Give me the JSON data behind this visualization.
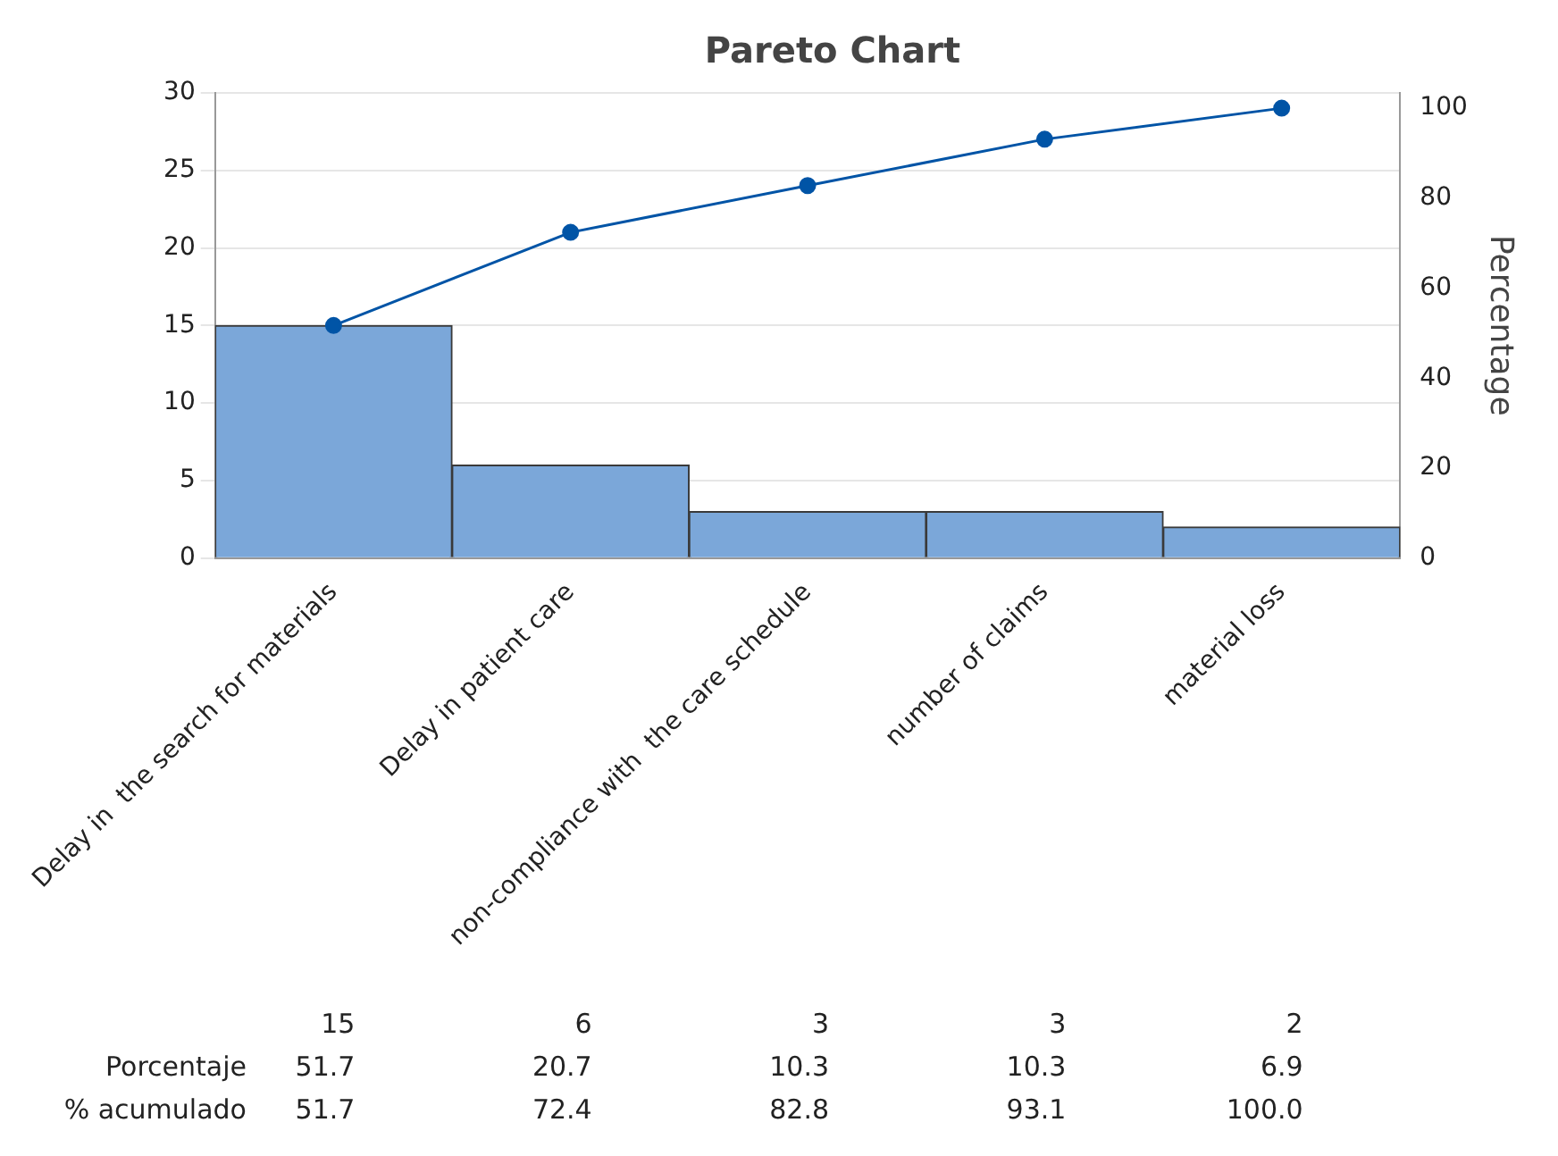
{
  "chart_data": {
    "type": "bar",
    "title": "Pareto Chart",
    "y2label": "Percentage",
    "categories": [
      "Delay in  the search for materials",
      "Delay in patient care",
      "non-compliance with  the care schedule",
      "number of claims",
      "material loss"
    ],
    "series": [
      {
        "color": "#7ba7d9",
        "values": [
          15,
          6,
          3,
          3,
          2
        ],
        "value_labels": [
          "15",
          "6",
          "3",
          "3",
          "2"
        ]
      },
      {
        "type": "line",
        "name": "% acumulado",
        "axis": "y2",
        "color": "#0054a6",
        "values": [
          51.7,
          72.4,
          82.8,
          93.1,
          100
        ],
        "value_labels": [
          "51.7",
          "72.4",
          "82.8",
          "93.1",
          "100.0"
        ]
      }
    ],
    "annotations": [
      "Porcentaje",
      "51.7",
      "20.7",
      "10.3",
      "10.3",
      "6.9"
    ],
    "ylim": [
      0,
      30
    ],
    "yticks": [
      0,
      5,
      10,
      15,
      20,
      25,
      30
    ],
    "y2lim": [
      0,
      103.4
    ],
    "y2ticks": [
      0,
      20,
      40,
      60,
      80,
      100
    ],
    "grid": "y",
    "legend": false,
    "marker": "circle",
    "line_style": "solid"
  }
}
